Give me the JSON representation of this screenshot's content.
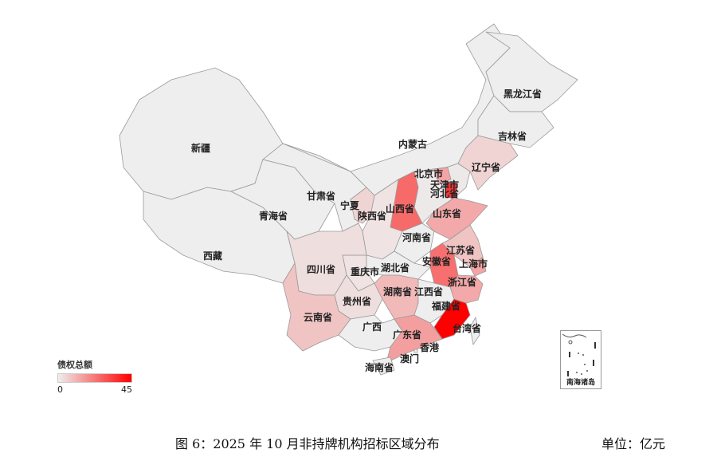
{
  "map_data": {
    "type": "choropleth",
    "region": "China",
    "metric_label": "债权总额",
    "scale": {
      "min": 0,
      "max": 45,
      "min_label": "0",
      "max_label": "45",
      "color_low": "#eeeeee",
      "color_high": "#ff0000"
    },
    "regions": [
      {
        "name": "新疆",
        "value": 0
      },
      {
        "name": "西藏",
        "value": 0
      },
      {
        "name": "青海省",
        "value": 0
      },
      {
        "name": "甘肃省",
        "value": 0
      },
      {
        "name": "内蒙古",
        "value": 0
      },
      {
        "name": "黑龙江省",
        "value": 0
      },
      {
        "name": "吉林省",
        "value": 0
      },
      {
        "name": "辽宁省",
        "value": 5
      },
      {
        "name": "河北省",
        "value": 1
      },
      {
        "name": "北京市",
        "value": 14
      },
      {
        "name": "天津市",
        "value": 35
      },
      {
        "name": "山西省",
        "value": 25
      },
      {
        "name": "陕西省",
        "value": 2
      },
      {
        "name": "宁夏",
        "value": 5
      },
      {
        "name": "山东省",
        "value": 13
      },
      {
        "name": "河南省",
        "value": 0
      },
      {
        "name": "江苏省",
        "value": 8
      },
      {
        "name": "安徽省",
        "value": 24
      },
      {
        "name": "上海市",
        "value": 14
      },
      {
        "name": "浙江省",
        "value": 13
      },
      {
        "name": "湖北省",
        "value": 0
      },
      {
        "name": "重庆市",
        "value": 2
      },
      {
        "name": "四川省",
        "value": 3
      },
      {
        "name": "贵州省",
        "value": 3
      },
      {
        "name": "云南省",
        "value": 8
      },
      {
        "name": "湖南省",
        "value": 10
      },
      {
        "name": "江西省",
        "value": 0
      },
      {
        "name": "福建省",
        "value": 45
      },
      {
        "name": "广西",
        "value": 0
      },
      {
        "name": "广东省",
        "value": 15
      },
      {
        "name": "海南省",
        "value": 0
      },
      {
        "name": "台湾省",
        "value": 0
      },
      {
        "name": "香港",
        "value": 0
      },
      {
        "name": "澳门",
        "value": 0
      }
    ],
    "inset_label": "南海诸岛"
  },
  "caption": "图 6：2025 年 10 月非持牌机构招标区域分布",
  "unit": "单位：亿元"
}
